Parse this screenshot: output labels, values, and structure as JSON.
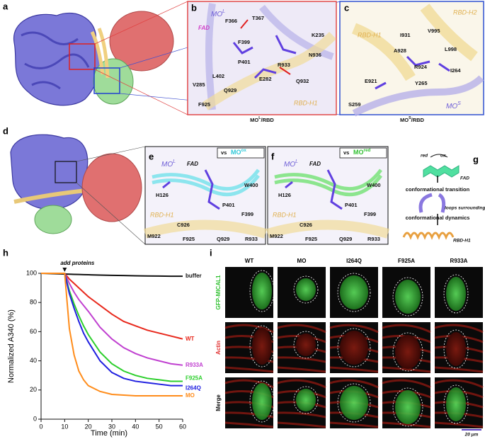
{
  "panel_labels": [
    "a",
    "b",
    "c",
    "d",
    "e",
    "f",
    "g",
    "h",
    "i"
  ],
  "panel_b": {
    "labels": [
      {
        "text": "MO",
        "sup": "L"
      },
      "FAD",
      "F366",
      "T367",
      "K235",
      "F399",
      "N936",
      "P401",
      "R933",
      "L402",
      "E282",
      "Q932",
      "V285",
      "Q929",
      "F925",
      "RBD-H1"
    ],
    "caption": {
      "text": "MO",
      "sup": "L",
      "tail": "/RBD"
    }
  },
  "panel_c": {
    "labels": [
      "RBD-H2",
      "RBD-H1",
      "I931",
      "V995",
      "A928",
      "L998",
      "R924",
      "I264",
      "E921",
      "Y265",
      "S259",
      {
        "text": "MO",
        "sup": "S"
      }
    ],
    "caption": {
      "text": "MO",
      "sup": "S",
      "tail": "/RBD"
    }
  },
  "panel_e": {
    "labels": [
      {
        "text": "MO",
        "sup": "L"
      },
      "FAD",
      "vs",
      {
        "text": "MO",
        "sup": "ox"
      },
      "W400",
      "H126",
      "P401",
      "F399",
      "RBD-H1",
      "M922",
      "C926",
      "F925",
      "Q929",
      "R933"
    ]
  },
  "panel_f": {
    "labels": [
      {
        "text": "MO",
        "sup": "L"
      },
      "FAD",
      "vs",
      {
        "text": "MO",
        "sup": "red"
      },
      "W400",
      "H126",
      "P401",
      "F399",
      "RBD-H1",
      "M922",
      "C926",
      "F925",
      "Q929",
      "R933"
    ]
  },
  "panel_g": {
    "labels": [
      "red",
      "ox",
      "FAD",
      "conformational transition",
      "loops surrounding FAD",
      "conformational dynamics",
      "RBD-H1"
    ]
  },
  "panel_i": {
    "columns": [
      "WT",
      "MO",
      "I264Q",
      "F925A",
      "R933A"
    ],
    "rows": [
      "GFP-MICAL1",
      "Actin",
      "Merge"
    ],
    "scale": "20 μm"
  },
  "chart_data": {
    "type": "line",
    "xlabel": "Time (min)",
    "ylabel": "Normalized A340 (%)",
    "annotation": {
      "text": "add proteins",
      "x": 10
    },
    "x": [
      0,
      10,
      12,
      14,
      16,
      18,
      20,
      25,
      30,
      35,
      40,
      45,
      50,
      55,
      60
    ],
    "xlim": [
      0,
      60
    ],
    "xticks": [
      0,
      10,
      20,
      30,
      40,
      50,
      60
    ],
    "ylim": [
      0,
      100
    ],
    "yticks": [
      0,
      20,
      40,
      60,
      80,
      100
    ],
    "series": [
      {
        "name": "buffer",
        "color": "#111111",
        "values": [
          100,
          99.5,
          99.4,
          99.3,
          99.2,
          99.1,
          99,
          98.8,
          98.6,
          98.5,
          98.3,
          98.2,
          98.1,
          98,
          98
        ]
      },
      {
        "name": "WT",
        "color": "#e8281c",
        "values": [
          100,
          100,
          96,
          93,
          90,
          87,
          84,
          78,
          72,
          67,
          64,
          61,
          59,
          57,
          55
        ]
      },
      {
        "name": "R933A",
        "color": "#c040d0",
        "values": [
          100,
          100,
          93,
          87,
          82,
          78,
          74,
          63,
          55,
          49,
          45,
          42,
          40,
          38,
          37
        ]
      },
      {
        "name": "F925A",
        "color": "#2ccf2c",
        "values": [
          100,
          100,
          88,
          79,
          71,
          64,
          58,
          46,
          38,
          33,
          30,
          28,
          27,
          26,
          26
        ]
      },
      {
        "name": "I264Q",
        "color": "#2020e0",
        "values": [
          100,
          100,
          86,
          76,
          67,
          59,
          53,
          40,
          32,
          28,
          26,
          25,
          24,
          23,
          23
        ]
      },
      {
        "name": "MO",
        "color": "#ff8c1a",
        "values": [
          100,
          100,
          62,
          44,
          33,
          27,
          23,
          19,
          17,
          16.5,
          16,
          16,
          16,
          16,
          16
        ]
      }
    ]
  }
}
